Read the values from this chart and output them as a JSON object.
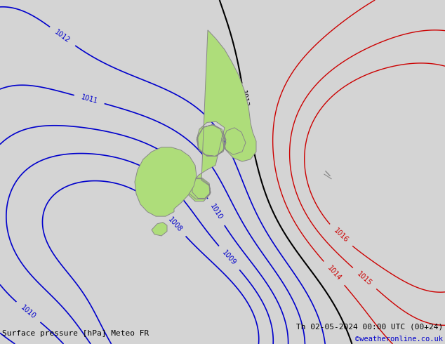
{
  "title_left": "Surface pressure [hPa] Meteo FR",
  "title_right": "Th 02-05-2024 00:00 UTC (00+24)",
  "copyright": "©weatheronline.co.uk",
  "bg_color": "#d4d4d4",
  "land_color": "#aedd7a",
  "coast_color": "#888888",
  "BK": "#000000",
  "BL": "#0000cc",
  "RD": "#cc0000"
}
